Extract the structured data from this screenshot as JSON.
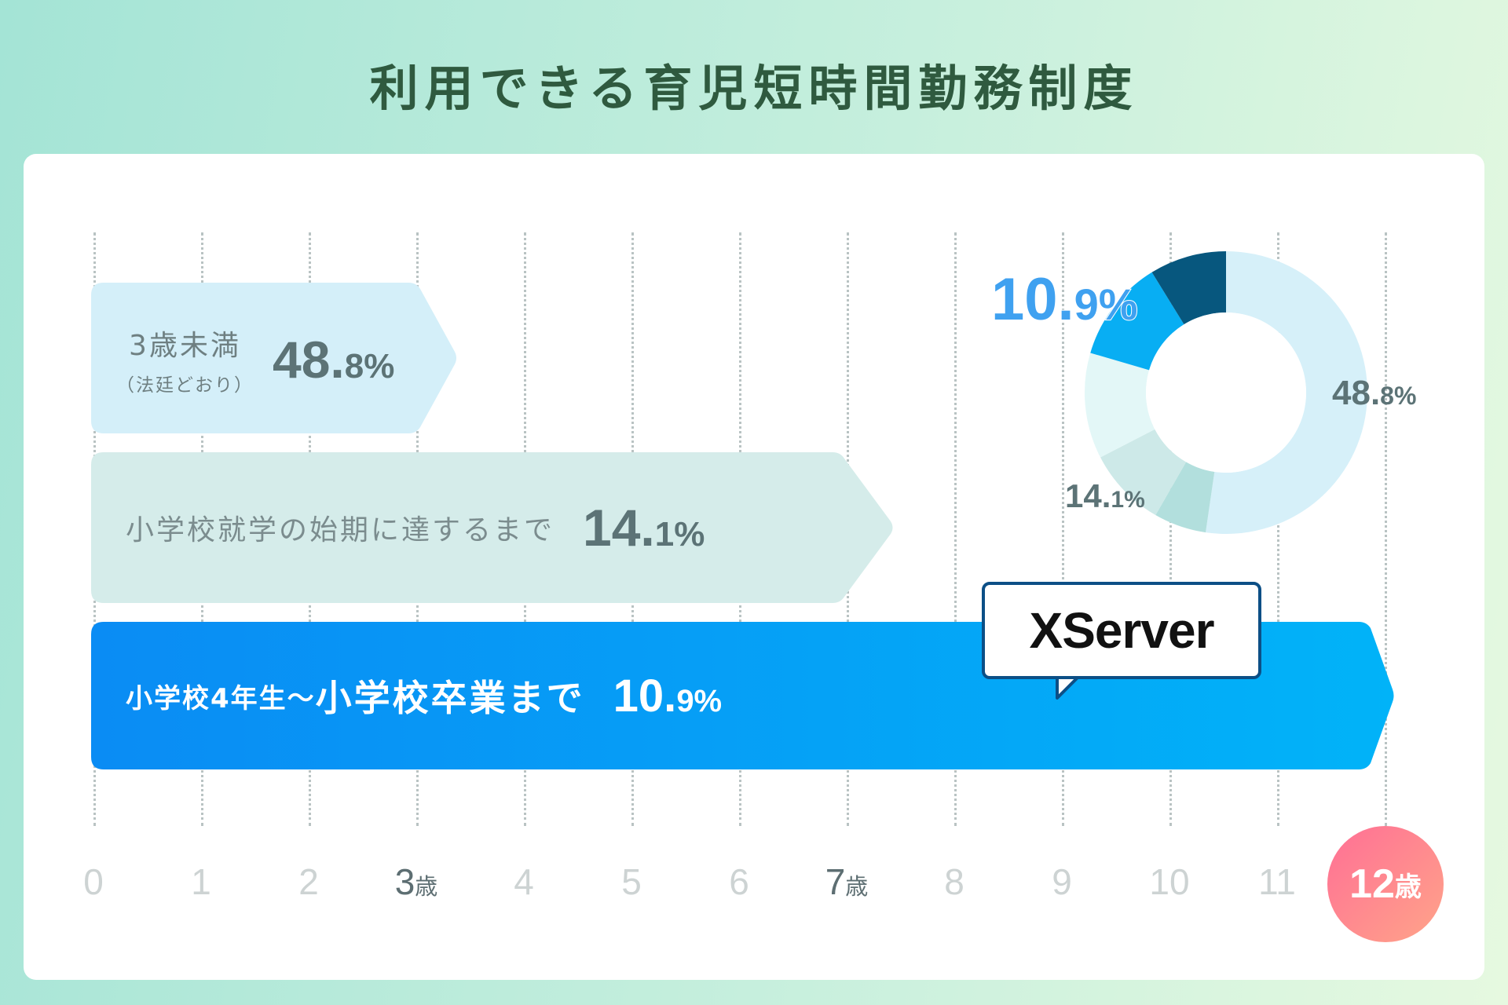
{
  "title": "利用できる育児短時間勤務制度",
  "axis": {
    "ticks": [
      {
        "label": "0",
        "unit": "",
        "highlight": false
      },
      {
        "label": "1",
        "unit": "",
        "highlight": false
      },
      {
        "label": "2",
        "unit": "",
        "highlight": false
      },
      {
        "label": "3",
        "unit": "歳",
        "highlight": true
      },
      {
        "label": "4",
        "unit": "",
        "highlight": false
      },
      {
        "label": "5",
        "unit": "",
        "highlight": false
      },
      {
        "label": "6",
        "unit": "",
        "highlight": false
      },
      {
        "label": "7",
        "unit": "歳",
        "highlight": true
      },
      {
        "label": "8",
        "unit": "",
        "highlight": false
      },
      {
        "label": "9",
        "unit": "",
        "highlight": false
      },
      {
        "label": "10",
        "unit": "",
        "highlight": false
      },
      {
        "label": "11",
        "unit": "",
        "highlight": false
      }
    ],
    "final_tick": {
      "label": "12",
      "unit": "歳"
    }
  },
  "bars": {
    "b1": {
      "label": "3歳未満",
      "sublabel": "（法廷どおり）",
      "pct_int": "48.",
      "pct_dec": "8%"
    },
    "b2": {
      "label": "小学校就学の始期に達するまで",
      "pct_int": "14.",
      "pct_dec": "1%"
    },
    "b3": {
      "label_small": "小学校4年生〜",
      "label_big": "小学校卒業まで",
      "pct_int": "10.",
      "pct_dec": "9%"
    }
  },
  "bubble": {
    "logo": "XServer"
  },
  "donut_labels": {
    "a": {
      "int": "48.",
      "dec": "8%"
    },
    "b": {
      "int": "14.",
      "dec": "1%"
    },
    "c": {
      "int": "10.",
      "dec": "9%"
    }
  },
  "colors": {
    "bar1": "#d4eff9",
    "bar2": "#d5ecea",
    "bar3_start": "#0a8cf4",
    "bar3_end": "#01b3f8",
    "donut_48_8": "#d6f0f9",
    "donut_14_1_dark": "#b2dfdd",
    "donut_14_1_light": "#cde9e8",
    "donut_other": "#e3f7f7",
    "donut_10_9": "#08aef3",
    "donut_remaining": "#07577e",
    "highlight_blue": "#3fa1f0",
    "gray_text": "#5c7376"
  },
  "chart_data": [
    {
      "type": "bar",
      "title": "利用できる育児短時間勤務制度",
      "xlabel": "",
      "ylabel": "",
      "x_ticks": [
        "0",
        "1",
        "2",
        "3歳",
        "4",
        "5",
        "6",
        "7歳",
        "8",
        "9",
        "10",
        "11",
        "12歳"
      ],
      "xlim": [
        0,
        12
      ],
      "categories": [
        "3歳未満（法廷どおり）",
        "小学校就学の始期に達するまで",
        "小学校4年生〜小学校卒業まで"
      ],
      "values_percent": [
        48.8,
        14.1,
        10.9
      ],
      "age_limit": [
        3,
        7,
        12
      ]
    },
    {
      "type": "pie",
      "donut": true,
      "slices": [
        {
          "label": "48.8%",
          "value": 48.8
        },
        {
          "label": "14.1%",
          "value": 14.1
        },
        {
          "label": "",
          "value": 11.3
        },
        {
          "label": "10.9%",
          "value": 10.9
        },
        {
          "label": "",
          "value": 8.2
        }
      ]
    }
  ]
}
